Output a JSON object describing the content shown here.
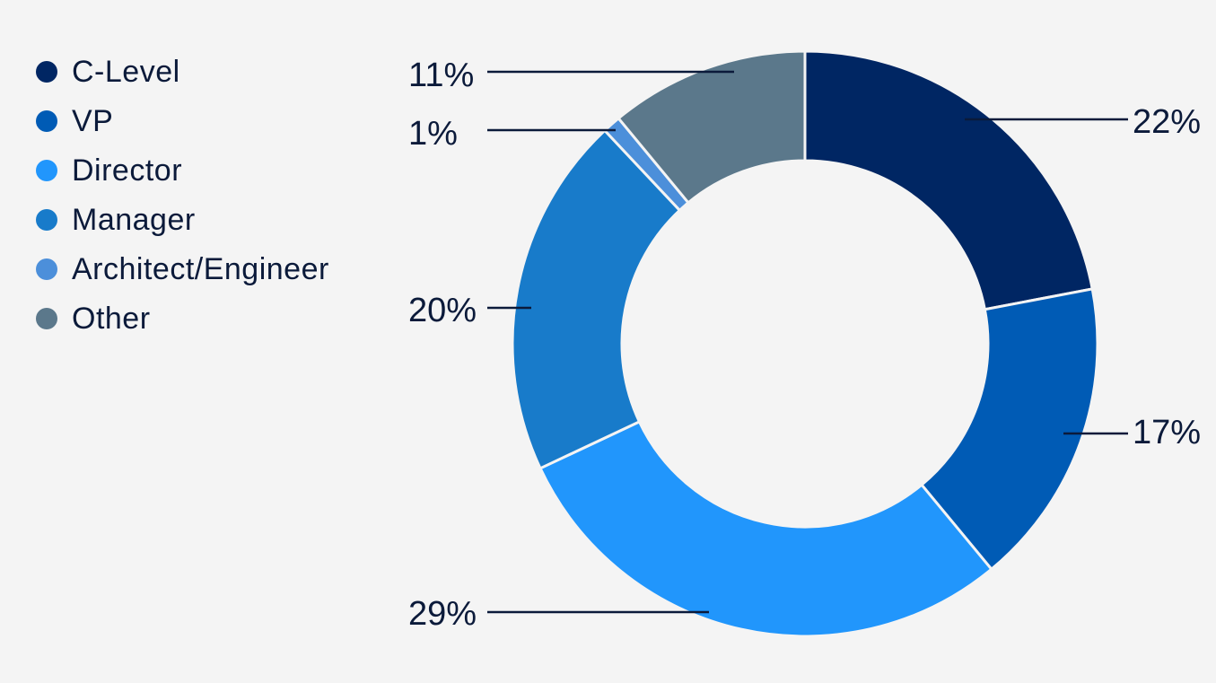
{
  "chart_data": {
    "type": "pie",
    "variant": "donut",
    "title": "",
    "legend_position": "top-left",
    "slices": [
      {
        "name": "C-Level",
        "value": 22,
        "label": "22%",
        "color": "#002663"
      },
      {
        "name": "VP",
        "value": 17,
        "label": "17%",
        "color": "#005bb5"
      },
      {
        "name": "Director",
        "value": 29,
        "label": "29%",
        "color": "#2196fc"
      },
      {
        "name": "Manager",
        "value": 20,
        "label": "20%",
        "color": "#187bca"
      },
      {
        "name": "Architect/Engineer",
        "value": 1,
        "label": "1%",
        "color": "#4c8fda"
      },
      {
        "name": "Other",
        "value": 11,
        "label": "11%",
        "color": "#5b788b"
      }
    ]
  }
}
